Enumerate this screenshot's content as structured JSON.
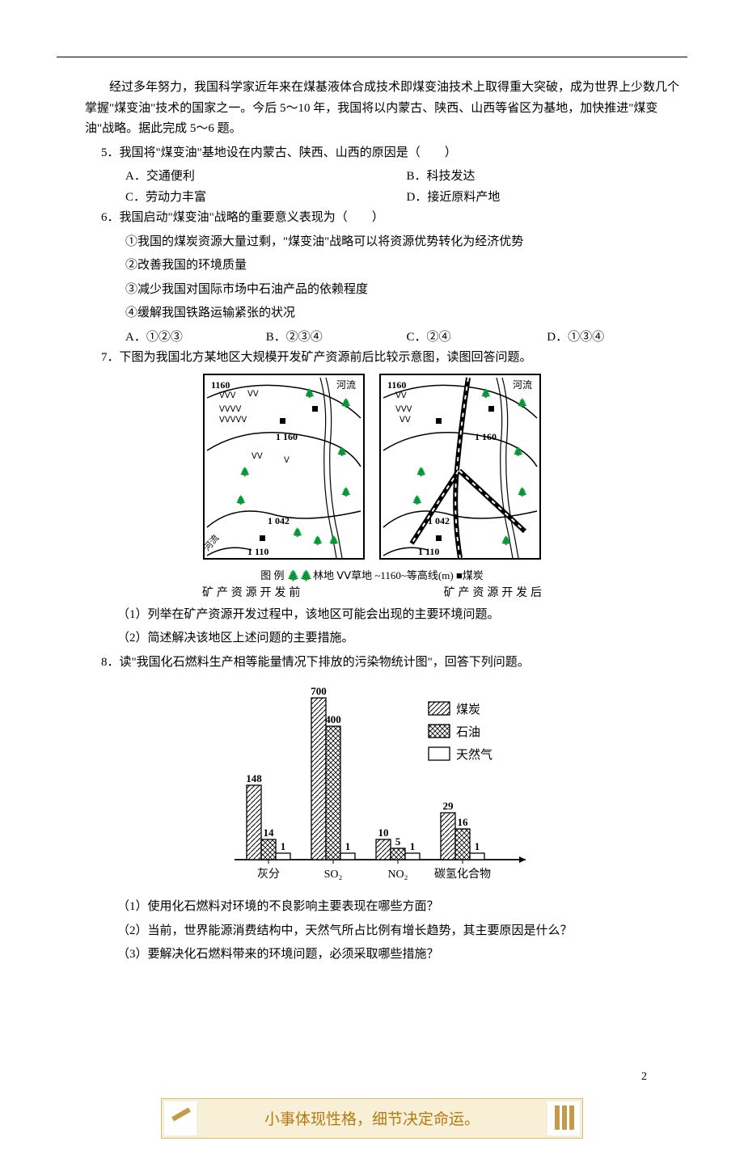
{
  "intro": "经过多年努力，我国科学家近年来在煤基液体合成技术即煤变油技术上取得重大突破，成为世界上少数几个掌握\"煤变油\"技术的国家之一。今后 5～10 年，我国将以内蒙古、陕西、山西等省区为基地，加快推进\"煤变油\"战略。据此完成 5～6 题。",
  "q5": {
    "stem": "5．我国将\"煤变油\"基地设在内蒙古、陕西、山西的原因是（　　）",
    "opts": {
      "A": "A．交通便利",
      "B": "B．科技发达",
      "C": "C．劳动力丰富",
      "D": "D．接近原料产地"
    }
  },
  "q6": {
    "stem": "6．我国启动\"煤变油\"战略的重要意义表现为（　　）",
    "stmts": {
      "s1": "①我国的煤炭资源大量过剩，\"煤变油\"战略可以将资源优势转化为经济优势",
      "s2": "②改善我国的环境质量",
      "s3": "③减少我国对国际市场中石油产品的依赖程度",
      "s4": "④缓解我国铁路运输紧张的状况"
    },
    "opts": {
      "A": "A．①②③",
      "B": "B．②③④",
      "C": "C．②④",
      "D": "D．①③④"
    }
  },
  "q7": {
    "stem": "7．下图为我国北方某地区大规模开发矿产资源前后比较示意图，读图回答问题。",
    "legend_text": "图 例 🌲🌲林地 ᐯᐯ草地 ~1160~等高线(m) ■煤炭",
    "caption_before": "矿 产 资 源 开 发 前",
    "caption_after": "矿 产 资 源 开 发 后",
    "map": {
      "contours": [
        "1160",
        "1 160",
        "1 042",
        "1 110"
      ],
      "feature_river": "河流",
      "feature_river2": "河流",
      "border_color": "#000000",
      "bg_color": "#ffffff"
    },
    "sub": {
      "s1": "（1）列举在矿产资源开发过程中，该地区可能会出现的主要环境问题。",
      "s2": "（2）简述解决该地区上述问题的主要措施。"
    }
  },
  "q8": {
    "stem": "8．读\"我国化石燃料生产相等能量情况下排放的污染物统计图\"，回答下列问题。",
    "chart": {
      "type": "bar",
      "categories": [
        "灰分",
        "SO₂",
        "NO₂",
        "碳氢化合物"
      ],
      "series": [
        {
          "name": "煤炭",
          "label": "煤炭",
          "pattern": "diag-right",
          "values": [
            148,
            700,
            10,
            29
          ]
        },
        {
          "name": "石油",
          "label": "石油",
          "pattern": "cross",
          "values": [
            14,
            400,
            5,
            16
          ]
        },
        {
          "name": "天然气",
          "label": "天然气",
          "pattern": "none",
          "values": [
            1,
            1,
            1,
            1
          ]
        }
      ],
      "value_labels_visible": true,
      "bar_labels": {
        "灰分": [
          "148",
          "14",
          "1"
        ],
        "SO₂": [
          "700",
          "400",
          "1"
        ],
        "NO₂": [
          "10",
          "5",
          "1"
        ],
        "碳氢化合物": [
          "29",
          "16",
          "1"
        ]
      },
      "ylim_logical": [
        0,
        700
      ],
      "bar_color": "#000000",
      "bg_color": "#ffffff",
      "axis_color": "#000000",
      "label_fontsize": 14,
      "value_fontsize": 13,
      "legend_fontsize": 15
    },
    "sub": {
      "s1": "（1）使用化石燃料对环境的不良影响主要表现在哪些方面？",
      "s2": "（2）当前，世界能源消费结构中，天然气所占比例有增长趋势，其主要原因是什么？",
      "s3": "（3）要解决化石燃料带来的环境问题，必须采取哪些措施？"
    }
  },
  "page_num": "2",
  "footer": "小事体现性格，细节决定命运。"
}
